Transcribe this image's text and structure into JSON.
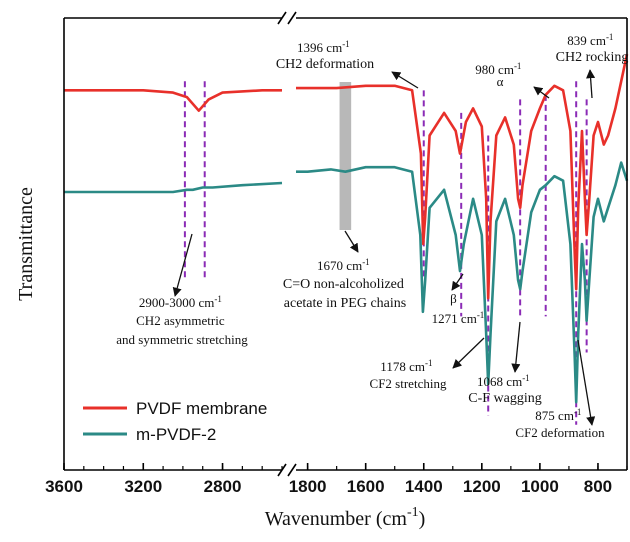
{
  "chart_data": {
    "type": "line",
    "xlabel": "Wavenumber (cm",
    "xlabel_sup": "-1",
    "xlabel_close": ")",
    "ylabel": "Transmittance",
    "x_axis": {
      "reversed": true,
      "broken": true,
      "left_segment": {
        "range": [
          3600,
          2500
        ],
        "ticks": [
          "3600",
          "3200",
          "2800"
        ],
        "tick_values": [
          3600,
          3200,
          2800
        ]
      },
      "right_segment": {
        "range": [
          1840,
          700
        ],
        "ticks": [
          "1800",
          "1600",
          "1400",
          "1200",
          "1000",
          "800"
        ],
        "tick_values": [
          1800,
          1600,
          1400,
          1200,
          1000,
          800
        ]
      }
    },
    "grid": false,
    "legend": {
      "placement": "bottom-left",
      "entries": [
        {
          "label": "PVDF membrane",
          "color": "#e8302a"
        },
        {
          "label": "m-PVDF-2",
          "color": "#2b8a86"
        }
      ]
    },
    "series": [
      {
        "name": "PVDF membrane",
        "color": "#e8302a",
        "points": [
          [
            3600,
            0.84
          ],
          [
            3400,
            0.84
          ],
          [
            3200,
            0.84
          ],
          [
            3050,
            0.835
          ],
          [
            2980,
            0.825
          ],
          [
            2920,
            0.795
          ],
          [
            2870,
            0.82
          ],
          [
            2800,
            0.835
          ],
          [
            2600,
            0.84
          ],
          [
            2500,
            0.84
          ],
          [
            1840,
            0.845
          ],
          [
            1800,
            0.845
          ],
          [
            1700,
            0.845
          ],
          [
            1600,
            0.85
          ],
          [
            1500,
            0.85
          ],
          [
            1440,
            0.84
          ],
          [
            1410,
            0.7
          ],
          [
            1402,
            0.5
          ],
          [
            1395,
            0.56
          ],
          [
            1380,
            0.74
          ],
          [
            1330,
            0.79
          ],
          [
            1290,
            0.75
          ],
          [
            1275,
            0.7
          ],
          [
            1255,
            0.77
          ],
          [
            1230,
            0.8
          ],
          [
            1200,
            0.76
          ],
          [
            1185,
            0.6
          ],
          [
            1178,
            0.38
          ],
          [
            1170,
            0.55
          ],
          [
            1150,
            0.74
          ],
          [
            1120,
            0.78
          ],
          [
            1090,
            0.72
          ],
          [
            1075,
            0.6
          ],
          [
            1068,
            0.58
          ],
          [
            1060,
            0.63
          ],
          [
            1030,
            0.75
          ],
          [
            1000,
            0.8
          ],
          [
            980,
            0.83
          ],
          [
            950,
            0.85
          ],
          [
            920,
            0.84
          ],
          [
            895,
            0.75
          ],
          [
            880,
            0.48
          ],
          [
            875,
            0.4
          ],
          [
            868,
            0.58
          ],
          [
            855,
            0.75
          ],
          [
            845,
            0.6
          ],
          [
            839,
            0.52
          ],
          [
            830,
            0.6
          ],
          [
            815,
            0.74
          ],
          [
            800,
            0.77
          ],
          [
            780,
            0.72
          ],
          [
            765,
            0.74
          ],
          [
            740,
            0.8
          ],
          [
            720,
            0.86
          ],
          [
            700,
            0.92
          ]
        ]
      },
      {
        "name": "m-PVDF-2",
        "color": "#2b8a86",
        "points": [
          [
            3600,
            0.615
          ],
          [
            3400,
            0.615
          ],
          [
            3200,
            0.615
          ],
          [
            3050,
            0.615
          ],
          [
            2980,
            0.62
          ],
          [
            2950,
            0.62
          ],
          [
            2900,
            0.625
          ],
          [
            2850,
            0.625
          ],
          [
            2700,
            0.63
          ],
          [
            2500,
            0.635
          ],
          [
            1840,
            0.66
          ],
          [
            1800,
            0.66
          ],
          [
            1720,
            0.665
          ],
          [
            1670,
            0.66
          ],
          [
            1600,
            0.67
          ],
          [
            1500,
            0.67
          ],
          [
            1440,
            0.66
          ],
          [
            1412,
            0.52
          ],
          [
            1403,
            0.35
          ],
          [
            1395,
            0.42
          ],
          [
            1380,
            0.58
          ],
          [
            1330,
            0.62
          ],
          [
            1290,
            0.52
          ],
          [
            1275,
            0.44
          ],
          [
            1262,
            0.5
          ],
          [
            1230,
            0.6
          ],
          [
            1200,
            0.52
          ],
          [
            1185,
            0.3
          ],
          [
            1178,
            0.19
          ],
          [
            1170,
            0.3
          ],
          [
            1150,
            0.55
          ],
          [
            1120,
            0.6
          ],
          [
            1090,
            0.52
          ],
          [
            1075,
            0.42
          ],
          [
            1068,
            0.4
          ],
          [
            1060,
            0.44
          ],
          [
            1030,
            0.57
          ],
          [
            1000,
            0.62
          ],
          [
            980,
            0.63
          ],
          [
            950,
            0.65
          ],
          [
            920,
            0.64
          ],
          [
            895,
            0.5
          ],
          [
            880,
            0.25
          ],
          [
            875,
            0.15
          ],
          [
            868,
            0.3
          ],
          [
            855,
            0.5
          ],
          [
            845,
            0.42
          ],
          [
            839,
            0.33
          ],
          [
            830,
            0.42
          ],
          [
            815,
            0.56
          ],
          [
            800,
            0.6
          ],
          [
            780,
            0.55
          ],
          [
            765,
            0.58
          ],
          [
            740,
            0.63
          ],
          [
            720,
            0.68
          ],
          [
            700,
            0.64
          ]
        ]
      }
    ],
    "shaded_band": {
      "x_range": [
        1690,
        1650
      ],
      "color": "#b8b8b8"
    },
    "marker_lines": [
      {
        "x": 2990,
        "from": 0.86,
        "to": 0.42
      },
      {
        "x": 2890,
        "from": 0.86,
        "to": 0.42
      },
      {
        "x": 1400,
        "from": 0.84,
        "to": 0.42
      },
      {
        "x": 1271,
        "from": 0.79,
        "to": 0.34
      },
      {
        "x": 1178,
        "from": 0.74,
        "to": 0.12
      },
      {
        "x": 1068,
        "from": 0.82,
        "to": 0.34
      },
      {
        "x": 980,
        "from": 0.83,
        "to": 0.34
      },
      {
        "x": 875,
        "from": 0.86,
        "to": 0.1
      },
      {
        "x": 839,
        "from": 0.82,
        "to": 0.26
      }
    ],
    "annotations": [
      {
        "id": "ch2-asym",
        "lines": [
          "2900-3000 cm",
          "CH2 asymmetric",
          "and symmetric stretching"
        ],
        "sup_line0": "-1"
      },
      {
        "id": "c-o-1670",
        "lines": [
          "1670 cm",
          "C=O non-alcoholized",
          "acetate in PEG chains"
        ],
        "sup_line0": "-1"
      },
      {
        "id": "ch2-def",
        "lines": [
          "1396 cm",
          "CH2 deformation"
        ],
        "sup_line0": "-1"
      },
      {
        "id": "beta",
        "lines": [
          "β",
          "1271 cm"
        ],
        "sup_line1": "-1"
      },
      {
        "id": "cf2-str",
        "lines": [
          "1178 cm",
          "CF2 stretching"
        ],
        "sup_line0": "-1"
      },
      {
        "id": "cf-wag",
        "lines": [
          "1068 cm",
          "C-F wagging"
        ],
        "sup_line0": "-1"
      },
      {
        "id": "alpha",
        "lines": [
          "980 cm",
          "α"
        ],
        "sup_line0": "-1"
      },
      {
        "id": "ch2-rock",
        "lines": [
          "839 cm",
          "CH2 rocking"
        ],
        "sup_line0": "-1"
      },
      {
        "id": "cf2-def",
        "lines": [
          "875 cm",
          "CF2 deformation"
        ],
        "sup_line0": "-1"
      }
    ]
  }
}
